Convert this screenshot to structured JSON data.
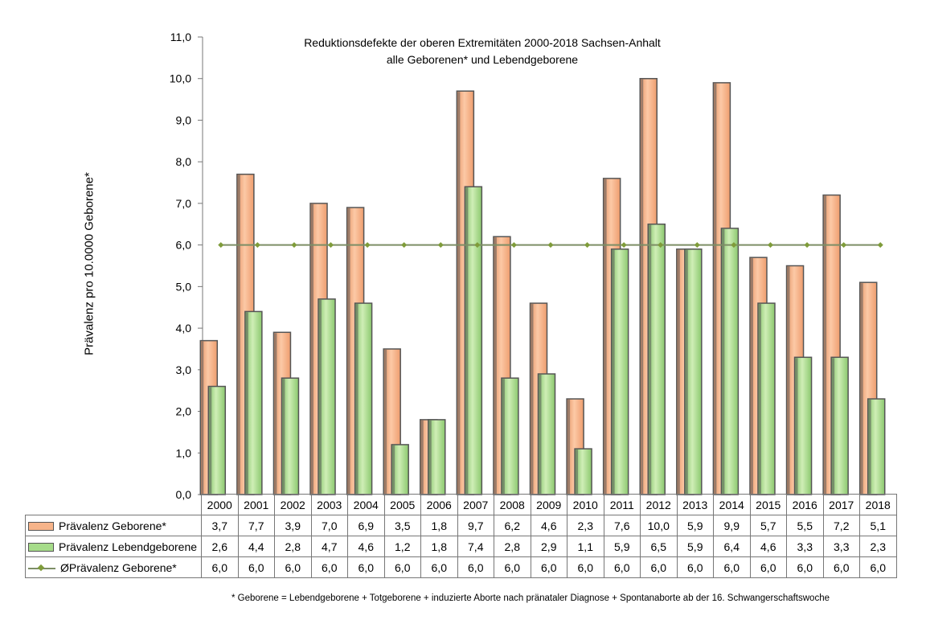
{
  "chart_data": {
    "type": "bar",
    "title": "Reduktionsdefekte der oberen Extremitäten 2000-2018 Sachsen-Anhalt",
    "subtitle": "alle Geborenen* und Lebendgeborene",
    "ylabel": "Prävalenz pro 10.0000 Geborene*",
    "xlabel": "",
    "ylim": [
      0,
      11
    ],
    "yticks": [
      "0,0",
      "1,0",
      "2,0",
      "3,0",
      "4,0",
      "5,0",
      "6,0",
      "7,0",
      "8,0",
      "9,0",
      "10,0",
      "11,0"
    ],
    "grid": false,
    "legend": "data-table",
    "categories": [
      "2000",
      "2001",
      "2002",
      "2003",
      "2004",
      "2005",
      "2006",
      "2007",
      "2008",
      "2009",
      "2010",
      "2011",
      "2012",
      "2013",
      "2014",
      "2015",
      "2016",
      "2017",
      "2018"
    ],
    "series": [
      {
        "name": "Prävalenz Geborene*",
        "kind": "bar",
        "color": "#f7b48a",
        "values": [
          3.7,
          7.7,
          3.9,
          7.0,
          6.9,
          3.5,
          1.8,
          9.7,
          6.2,
          4.6,
          2.3,
          7.6,
          10.0,
          5.9,
          9.9,
          5.7,
          5.5,
          7.2,
          5.1
        ],
        "labels": [
          "3,7",
          "7,7",
          "3,9",
          "7,0",
          "6,9",
          "3,5",
          "1,8",
          "9,7",
          "6,2",
          "4,6",
          "2,3",
          "7,6",
          "10,0",
          "5,9",
          "9,9",
          "5,7",
          "5,5",
          "7,2",
          "5,1"
        ]
      },
      {
        "name": "Prävalenz Lebendgeborene",
        "kind": "bar",
        "color": "#a6dc8a",
        "values": [
          2.6,
          4.4,
          2.8,
          4.7,
          4.6,
          1.2,
          1.8,
          7.4,
          2.8,
          2.9,
          1.1,
          5.9,
          6.5,
          5.9,
          6.4,
          4.6,
          3.3,
          3.3,
          2.3
        ],
        "labels": [
          "2,6",
          "4,4",
          "2,8",
          "4,7",
          "4,6",
          "1,2",
          "1,8",
          "7,4",
          "2,8",
          "2,9",
          "1,1",
          "5,9",
          "6,5",
          "5,9",
          "6,4",
          "4,6",
          "3,3",
          "3,3",
          "2,3"
        ]
      },
      {
        "name": "ØPrävalenz Geborene*",
        "kind": "line",
        "color": "#7d8e66",
        "values": [
          6.0,
          6.0,
          6.0,
          6.0,
          6.0,
          6.0,
          6.0,
          6.0,
          6.0,
          6.0,
          6.0,
          6.0,
          6.0,
          6.0,
          6.0,
          6.0,
          6.0,
          6.0,
          6.0
        ],
        "labels": [
          "6,0",
          "6,0",
          "6,0",
          "6,0",
          "6,0",
          "6,0",
          "6,0",
          "6,0",
          "6,0",
          "6,0",
          "6,0",
          "6,0",
          "6,0",
          "6,0",
          "6,0",
          "6,0",
          "6,0",
          "6,0",
          "6,0"
        ]
      }
    ]
  },
  "footnote": "* Geborene = Lebendgeborene + Totgeborene + induzierte Aborte nach pränataler Diagnose + Spontanaborte ab der 16. Schwangerschaftswoche"
}
